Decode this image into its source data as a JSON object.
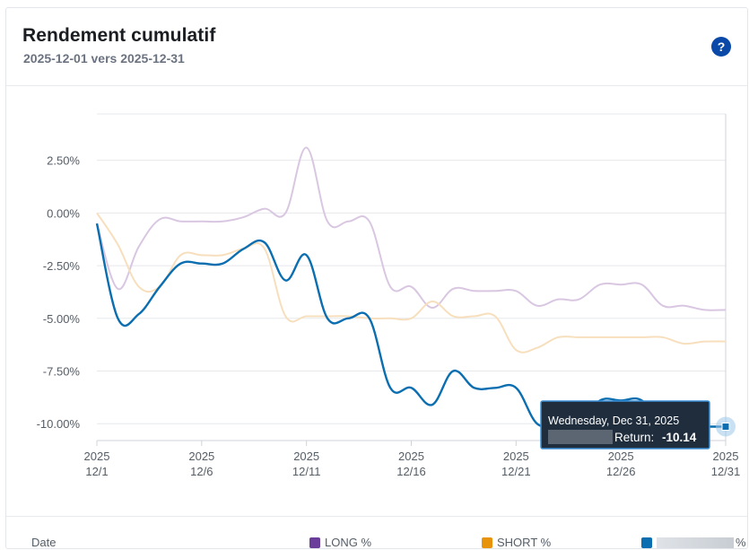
{
  "header": {
    "title": "Rendement cumulatif",
    "subtitle": "2025-12-01 vers 2025-12-31",
    "help_label": "?"
  },
  "legend": {
    "date_label": "Date",
    "items": [
      {
        "label": "LONG %",
        "color": "#6a3d9a"
      },
      {
        "label": "SHORT %",
        "color": "#e8930c"
      },
      {
        "label": "%",
        "color": "#0b6eb0"
      }
    ]
  },
  "tooltip": {
    "date": "Wednesday, Dec 31, 2025",
    "label": "Return:",
    "value": "-10.14"
  },
  "chart_data": {
    "type": "line",
    "title": "Rendement cumulatif",
    "subtitle": "2025-12-01 vers 2025-12-31",
    "y_ticks": [
      "2.50%",
      "0.00%",
      "-2.50%",
      "-5.00%",
      "-7.50%",
      "-10.00%"
    ],
    "y_tick_values": [
      2.5,
      0,
      -2.5,
      -5,
      -7.5,
      -10
    ],
    "x_ticks": [
      {
        "year": "2025",
        "date": "12/1"
      },
      {
        "year": "2025",
        "date": "12/6"
      },
      {
        "year": "2025",
        "date": "12/11"
      },
      {
        "year": "2025",
        "date": "12/16"
      },
      {
        "year": "2025",
        "date": "12/21"
      },
      {
        "year": "2025",
        "date": "12/26"
      },
      {
        "year": "2025",
        "date": "12/31"
      }
    ],
    "x": [
      "12/1",
      "12/2",
      "12/3",
      "12/4",
      "12/5",
      "12/6",
      "12/7",
      "12/8",
      "12/9",
      "12/10",
      "12/11",
      "12/12",
      "12/13",
      "12/14",
      "12/15",
      "12/16",
      "12/17",
      "12/18",
      "12/19",
      "12/20",
      "12/21",
      "12/22",
      "12/23",
      "12/24",
      "12/25",
      "12/26",
      "12/27",
      "12/28",
      "12/29",
      "12/30",
      "12/31"
    ],
    "ylim": [
      -10.8,
      4.7
    ],
    "grid": true,
    "legend_position": "bottom",
    "series": [
      {
        "name": "LONG %",
        "color": "#d9c7e2",
        "values": [
          -0.5,
          -3.6,
          -1.6,
          -0.3,
          -0.4,
          -0.4,
          -0.4,
          -0.2,
          0.2,
          0.0,
          3.1,
          -0.4,
          -0.4,
          -0.4,
          -3.5,
          -3.5,
          -4.5,
          -3.6,
          -3.7,
          -3.7,
          -3.7,
          -4.4,
          -4.1,
          -4.1,
          -3.4,
          -3.4,
          -3.4,
          -4.4,
          -4.4,
          -4.6,
          -4.6
        ]
      },
      {
        "name": "SHORT %",
        "color": "#f7dfbd",
        "values": [
          0.0,
          -1.5,
          -3.5,
          -3.5,
          -2.0,
          -2.0,
          -2.0,
          -1.7,
          -1.7,
          -4.9,
          -4.9,
          -4.9,
          -4.9,
          -5.0,
          -5.0,
          -5.0,
          -4.2,
          -4.9,
          -4.9,
          -4.9,
          -6.5,
          -6.4,
          -5.9,
          -5.9,
          -5.9,
          -5.9,
          -5.9,
          -5.9,
          -6.2,
          -6.1,
          -6.1
        ]
      },
      {
        "name": "%",
        "color": "#0b6eb0",
        "values": [
          -0.5,
          -5.0,
          -4.8,
          -3.5,
          -2.4,
          -2.4,
          -2.4,
          -1.7,
          -1.4,
          -3.2,
          -2.0,
          -5.0,
          -5.0,
          -5.0,
          -8.3,
          -8.3,
          -9.1,
          -7.5,
          -8.3,
          -8.3,
          -8.3,
          -10.0,
          -10.0,
          -10.0,
          -8.9,
          -8.9,
          -8.9,
          -10.14,
          -10.14,
          -10.14,
          -10.14
        ]
      }
    ]
  }
}
